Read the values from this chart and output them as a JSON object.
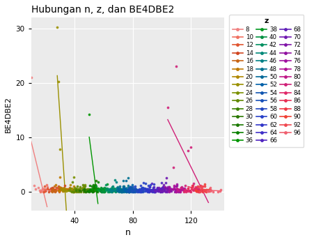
{
  "title": "Hubungan n, z, dan BE4DBE2",
  "xlabel": "n",
  "ylabel": "BE4DBE2",
  "legend_title": "z",
  "z_values": [
    8,
    10,
    12,
    14,
    16,
    18,
    20,
    22,
    24,
    26,
    28,
    30,
    32,
    34,
    36,
    38,
    40,
    42,
    44,
    46,
    48,
    50,
    52,
    54,
    56,
    58,
    60,
    62,
    64,
    66,
    68,
    70,
    72,
    74,
    76,
    78,
    80,
    82,
    84,
    86,
    88,
    90,
    92,
    96
  ],
  "bg_color": "#ebebeb",
  "grid_color": "#ffffff",
  "xlim": [
    10,
    143
  ],
  "ylim": [
    -3.5,
    32
  ],
  "xticks": [
    40,
    80,
    120
  ],
  "yticks": [
    0,
    10,
    20,
    30
  ],
  "z_colors": {
    "8": "#F08080",
    "10": "#F07060",
    "12": "#E05530",
    "14": "#D04520",
    "16": "#C86515",
    "18": "#C07800",
    "20": "#B08800",
    "22": "#9A9000",
    "24": "#7A9000",
    "26": "#608800",
    "28": "#3A8000",
    "30": "#2A7800",
    "32": "#1A7800",
    "34": "#0A8000",
    "36": "#009500",
    "38": "#009820",
    "40": "#009040",
    "42": "#009060",
    "44": "#008878",
    "46": "#008085",
    "48": "#007090",
    "50": "#006898",
    "52": "#0060A8",
    "54": "#1055B0",
    "56": "#1850B8",
    "58": "#2045C0",
    "60": "#2840C8",
    "62": "#3035C8",
    "64": "#4030C8",
    "66": "#5025C0",
    "68": "#6020B8",
    "70": "#7018B0",
    "72": "#8015A8",
    "74": "#9010A0",
    "76": "#A010A0",
    "78": "#B01095",
    "80": "#C01888",
    "82": "#D02078",
    "84": "#E02868",
    "86": "#E83055",
    "88": "#F03845",
    "90": "#F04035",
    "92": "#F04850",
    "96": "#F06070"
  },
  "special_groups": {
    "8": {
      "ns": [
        10,
        12,
        13,
        15,
        16,
        17,
        18,
        19,
        20,
        21
      ],
      "be4": [
        21,
        1.2,
        0.5,
        0.8,
        0.3,
        0.2,
        0.6,
        0.4,
        0.3,
        0.9
      ]
    },
    "22": {
      "ns": [
        28,
        29,
        30,
        31,
        32,
        33,
        34,
        35
      ],
      "be4": [
        30.2,
        20.2,
        7.8,
        0.5,
        0.3,
        0.4,
        0.2,
        0.3
      ]
    },
    "36": {
      "ns": [
        50,
        52,
        54,
        56
      ],
      "be4": [
        14.2,
        0.5,
        0.4,
        0.7
      ]
    },
    "82": {
      "ns": [
        104,
        108,
        110,
        113,
        116,
        118,
        120,
        122,
        125,
        128,
        132
      ],
      "be4": [
        15.5,
        4.5,
        23.0,
        0.8,
        1.2,
        7.5,
        8.2,
        1.5,
        0.5,
        0.3,
        0.2
      ]
    }
  }
}
